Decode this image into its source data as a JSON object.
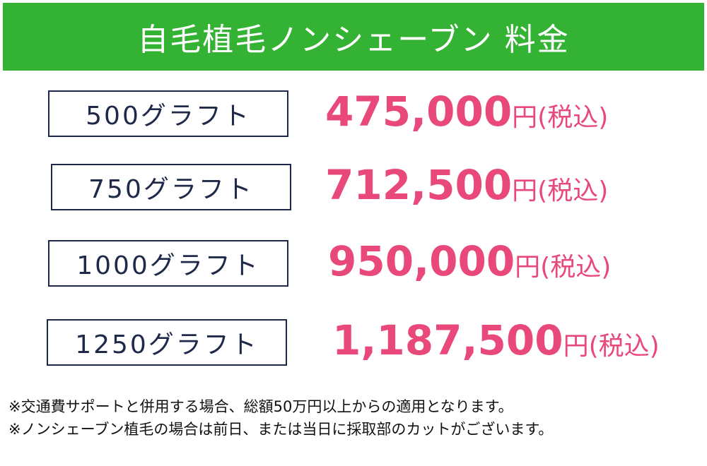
{
  "header": {
    "title": "自毛植毛ノンシェーブン 料金"
  },
  "rows": [
    {
      "label": "500グラフト",
      "price": "475,000",
      "unit": "円(税込)"
    },
    {
      "label": "750グラフト",
      "price": "712,500",
      "unit": "円(税込)"
    },
    {
      "label": "1000グラフト",
      "price": "950,000",
      "unit": "円(税込)"
    },
    {
      "label": "1250グラフト",
      "price": "1,187,500",
      "unit": "円(税込)"
    }
  ],
  "notes": [
    "※交通費サポートと併用する場合、総額50万円以上からの適用となります。",
    "※ノンシェーブン植毛の場合は前日、または当日に採取部のカットがございます。"
  ]
}
